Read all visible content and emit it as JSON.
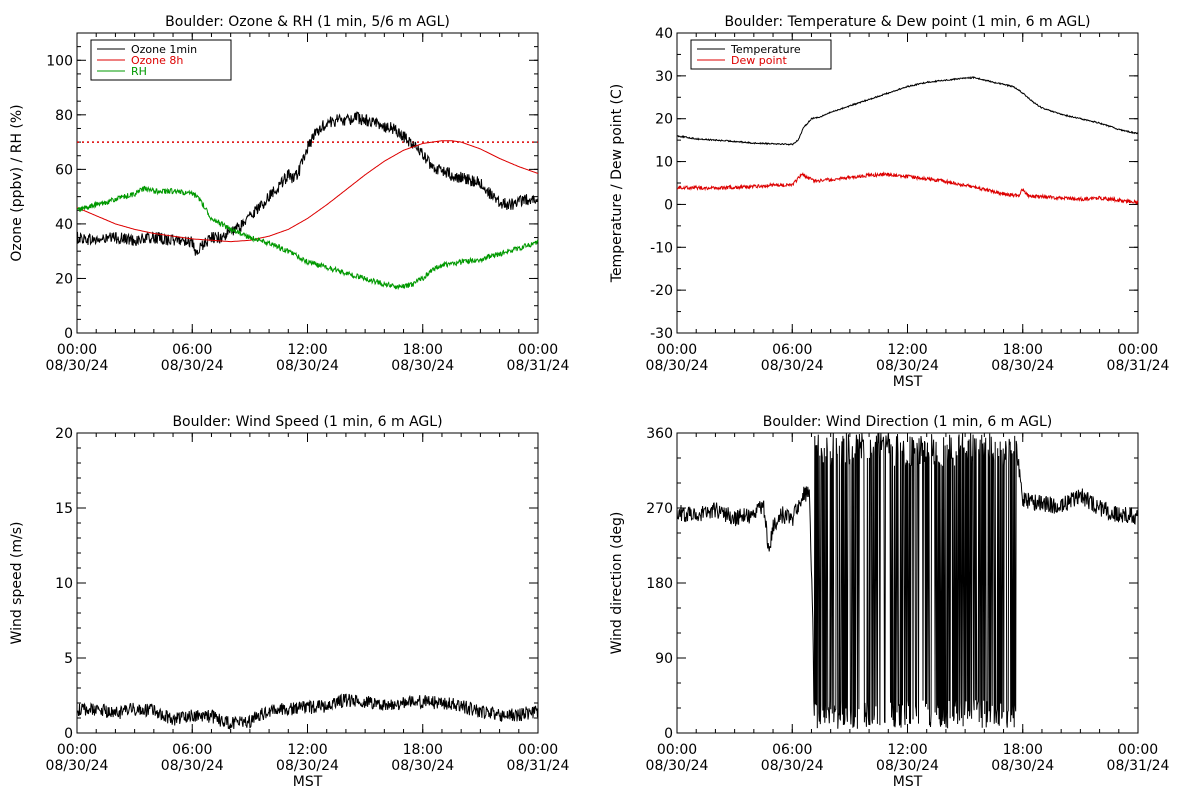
{
  "chart_data": [
    {
      "id": "ozone-rh",
      "type": "line",
      "title": "Boulder: Ozone & RH (1 min, 5/6 m AGL)",
      "xlabel": "",
      "ylabel": "Ozone (ppbv) / RH (%)",
      "xlim_hours": [
        0,
        24
      ],
      "x_ticks": [
        {
          "time": "00:00",
          "date": "08/30/24"
        },
        {
          "time": "06:00",
          "date": "08/30/24"
        },
        {
          "time": "12:00",
          "date": "08/30/24"
        },
        {
          "time": "18:00",
          "date": "08/30/24"
        },
        {
          "time": "00:00",
          "date": "08/31/24"
        }
      ],
      "ylim": [
        0,
        110
      ],
      "y_ticks": [
        0,
        20,
        40,
        60,
        80,
        100
      ],
      "y_minor_step": 5,
      "legend": "top-left",
      "reference_line": {
        "y": 70,
        "color": "#dd0000",
        "style": "dotted"
      },
      "series": [
        {
          "name": "Ozone 1min",
          "color": "#000000",
          "noise": 2.2,
          "x": [
            0,
            1,
            2,
            3,
            4,
            5,
            5.8,
            6.0,
            6.2,
            6.5,
            7,
            7.5,
            8,
            8.5,
            9,
            9.5,
            10,
            10.5,
            11,
            11.3,
            11.6,
            12,
            12.5,
            13,
            13.5,
            14,
            14.5,
            15,
            15.5,
            16,
            16.5,
            17,
            17.5,
            18,
            18.5,
            19,
            19.5,
            20,
            20.5,
            21,
            21.5,
            22,
            22.5,
            23,
            23.5,
            24
          ],
          "y": [
            35,
            34,
            35,
            34,
            35,
            34,
            34,
            33,
            28,
            32,
            35,
            35,
            37,
            39,
            43,
            46,
            50,
            54,
            58,
            56,
            60,
            68,
            74,
            77,
            78,
            78,
            79,
            78,
            77,
            76,
            75,
            72,
            69,
            66,
            60,
            60,
            58,
            57,
            56,
            55,
            51,
            48,
            47,
            48,
            49,
            50
          ]
        },
        {
          "name": "Ozone 8h",
          "color": "#dd0000",
          "noise": 0,
          "x": [
            0,
            1,
            2,
            3,
            4,
            5,
            6,
            7,
            8,
            9,
            10,
            11,
            12,
            13,
            14,
            15,
            16,
            17,
            18,
            19,
            19.5,
            20,
            21,
            22,
            23,
            24
          ],
          "y": [
            46,
            43,
            40,
            38,
            36.5,
            35.5,
            34.5,
            34,
            33.5,
            34,
            35.5,
            38,
            42,
            47,
            52.5,
            58,
            63,
            67,
            69.5,
            70.5,
            70.5,
            70,
            67.5,
            64,
            61,
            58.5
          ]
        },
        {
          "name": "RH",
          "color": "#009900",
          "noise": 1.0,
          "x": [
            0,
            0.5,
            1,
            2,
            3,
            3.5,
            4,
            5,
            6,
            6.4,
            7,
            8,
            9,
            10,
            11,
            12,
            13,
            14,
            15,
            16,
            16.5,
            17,
            17.5,
            18,
            18.5,
            19,
            20,
            21,
            22,
            23,
            24
          ],
          "y": [
            45,
            46,
            47,
            49,
            51,
            53,
            52,
            52,
            51,
            49,
            42,
            38,
            35,
            33,
            30,
            26,
            24,
            22,
            20,
            18,
            17,
            17,
            18,
            20,
            23,
            25,
            26,
            27,
            29,
            31,
            33.5
          ]
        }
      ]
    },
    {
      "id": "temp-dew",
      "type": "line",
      "title": "Boulder: Temperature & Dew point (1 min, 6 m AGL)",
      "xlabel": "MST",
      "ylabel": "Temperature / Dew point (C)",
      "xlim_hours": [
        0,
        24
      ],
      "x_ticks": [
        {
          "time": "00:00",
          "date": "08/30/24"
        },
        {
          "time": "06:00",
          "date": "08/30/24"
        },
        {
          "time": "12:00",
          "date": "08/30/24"
        },
        {
          "time": "18:00",
          "date": "08/30/24"
        },
        {
          "time": "00:00",
          "date": "08/31/24"
        }
      ],
      "ylim": [
        -30,
        40
      ],
      "y_ticks": [
        -30,
        -20,
        -10,
        0,
        10,
        20,
        30,
        40
      ],
      "y_minor_step": 5,
      "legend": "top-left",
      "series": [
        {
          "name": "Temperature",
          "color": "#000000",
          "noise": 0.15,
          "x": [
            0,
            1,
            2,
            3,
            4,
            5,
            6,
            6.3,
            6.6,
            7,
            7.5,
            8,
            9,
            10,
            11,
            12,
            13,
            14,
            15,
            15.5,
            16,
            17,
            17.5,
            18,
            18.5,
            19,
            20,
            21,
            22,
            23,
            24
          ],
          "y": [
            16,
            15.3,
            15,
            14.7,
            14.3,
            14.2,
            14,
            15,
            18,
            20,
            20.5,
            21.5,
            23,
            24.5,
            26,
            27.5,
            28.5,
            29,
            29.5,
            29.6,
            29,
            28,
            27.5,
            26,
            24,
            22.5,
            21,
            20,
            19,
            17.5,
            16.5
          ]
        },
        {
          "name": "Dew point",
          "color": "#dd0000",
          "noise": 0.4,
          "x": [
            0,
            2,
            4,
            5,
            6,
            6.2,
            6.5,
            6.9,
            7.2,
            8,
            10,
            11,
            12,
            13,
            14,
            15,
            16,
            17,
            17.8,
            18,
            18.3,
            19,
            20,
            21,
            22,
            23,
            24
          ],
          "y": [
            4,
            3.8,
            4.2,
            4.5,
            4.5,
            5.5,
            7,
            6,
            5.5,
            5.8,
            6.8,
            7,
            6.5,
            6,
            5.3,
            4.5,
            3.5,
            2.5,
            2,
            3.5,
            2,
            1.8,
            1.5,
            1.2,
            1.5,
            1,
            0.5
          ]
        }
      ]
    },
    {
      "id": "wind-speed",
      "type": "line",
      "title": "Boulder: Wind Speed (1 min, 6 m AGL)",
      "xlabel": "MST",
      "ylabel": "Wind speed (m/s)",
      "xlim_hours": [
        0,
        24
      ],
      "x_ticks": [
        {
          "time": "00:00",
          "date": "08/30/24"
        },
        {
          "time": "06:00",
          "date": "08/30/24"
        },
        {
          "time": "12:00",
          "date": "08/30/24"
        },
        {
          "time": "18:00",
          "date": "08/30/24"
        },
        {
          "time": "00:00",
          "date": "08/31/24"
        }
      ],
      "ylim": [
        0,
        20
      ],
      "y_ticks": [
        0,
        5,
        10,
        15,
        20
      ],
      "y_minor_step": 1,
      "legend": "none",
      "series": [
        {
          "name": "",
          "color": "#000000",
          "noise": 0.45,
          "x": [
            0,
            1,
            2,
            3,
            4,
            5,
            6,
            7,
            8,
            9,
            10,
            11,
            12,
            13,
            14,
            15,
            16,
            17,
            18,
            19,
            20,
            21,
            22,
            23,
            24
          ],
          "y": [
            1.5,
            1.6,
            1.3,
            1.6,
            1.5,
            0.9,
            1.2,
            1.1,
            0.6,
            0.8,
            1.5,
            1.6,
            1.7,
            1.8,
            2.2,
            2.1,
            1.9,
            2.0,
            2.1,
            2.0,
            1.8,
            1.4,
            1.2,
            1.2,
            1.5
          ]
        }
      ]
    },
    {
      "id": "wind-direction",
      "type": "line",
      "title": "Boulder: Wind Direction (1 min, 6 m AGL)",
      "xlabel": "MST",
      "ylabel": "Wind direction (deg)",
      "xlim_hours": [
        0,
        24
      ],
      "x_ticks": [
        {
          "time": "00:00",
          "date": "08/30/24"
        },
        {
          "time": "06:00",
          "date": "08/30/24"
        },
        {
          "time": "12:00",
          "date": "08/30/24"
        },
        {
          "time": "18:00",
          "date": "08/30/24"
        },
        {
          "time": "00:00",
          "date": "08/31/24"
        }
      ],
      "ylim": [
        0,
        360
      ],
      "y_ticks": [
        0,
        90,
        180,
        270,
        360
      ],
      "y_minor_step": 30,
      "legend": "none",
      "series": [
        {
          "name": "",
          "color": "#000000",
          "noise": 10,
          "x": [
            0,
            1,
            2,
            3,
            4,
            4.5,
            4.8,
            5,
            5.5,
            6,
            6.5,
            6.9,
            7.2,
            8,
            9,
            10,
            11,
            12,
            13,
            14,
            15,
            16,
            17,
            17.6,
            18,
            19,
            20,
            21,
            22,
            23,
            24
          ],
          "y": [
            265,
            262,
            268,
            258,
            262,
            275,
            215,
            250,
            262,
            255,
            285,
            290,
            5,
            350,
            10,
            355,
            345,
            15,
            350,
            5,
            355,
            10,
            345,
            355,
            280,
            275,
            272,
            285,
            270,
            262,
            260
          ]
        }
      ]
    }
  ]
}
